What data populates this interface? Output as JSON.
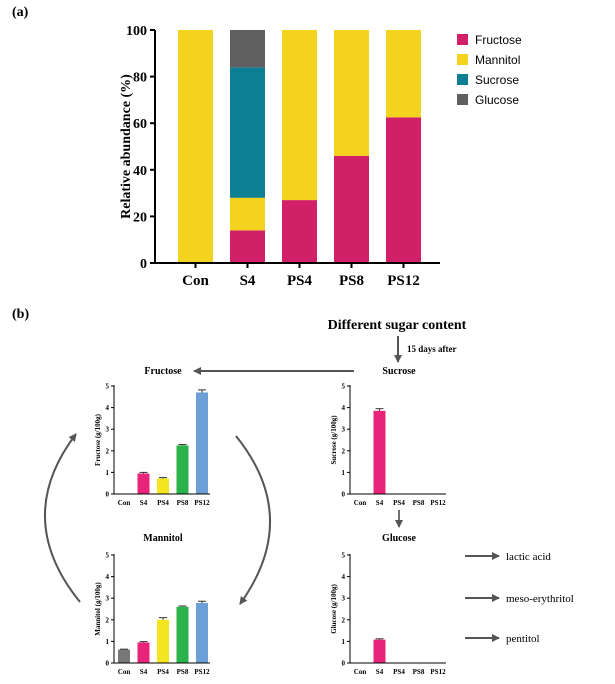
{
  "panel_labels": {
    "a": "(a)",
    "b": "(b)"
  },
  "colors": {
    "fructose": "#d11f68",
    "mannitol": "#f4d31f",
    "sucrose": "#0d7f92",
    "glucose": "#5f5f5f",
    "con_gray": "#777777",
    "s4": "#e8237a",
    "ps4": "#f4e61e",
    "ps8": "#2ab34a",
    "ps12": "#6b9fd6",
    "arrow": "#555555"
  },
  "chart_data": [
    {
      "id": "stacked",
      "type": "bar",
      "stacked": true,
      "categories": [
        "Con",
        "S4",
        "PS4",
        "PS8",
        "PS12"
      ],
      "ylabel": "Relative abundance (%)",
      "ylim": [
        0,
        100
      ],
      "yticks": [
        0,
        20,
        40,
        60,
        80,
        100
      ],
      "legend_position": "right",
      "series": [
        {
          "name": "Fructose",
          "values": [
            0,
            14,
            27,
            46,
            62.5
          ]
        },
        {
          "name": "Mannitol",
          "values": [
            100,
            14,
            73,
            54,
            37.5
          ]
        },
        {
          "name": "Sucrose",
          "values": [
            0,
            56,
            0,
            0,
            0
          ]
        },
        {
          "name": "Glucose",
          "values": [
            0,
            16,
            0,
            0,
            0
          ]
        }
      ]
    },
    {
      "id": "fructose",
      "type": "bar",
      "title": "Fructose",
      "ylabel": "Fructose (g/100g)",
      "categories": [
        "Con",
        "S4",
        "PS4",
        "PS8",
        "PS12"
      ],
      "values": [
        0,
        0.95,
        0.72,
        2.25,
        4.7
      ],
      "errors": [
        0,
        0.05,
        0.04,
        0.04,
        0.12
      ],
      "ylim": [
        0,
        5
      ],
      "yticks": [
        0,
        1,
        2,
        3,
        4,
        5
      ]
    },
    {
      "id": "sucrose",
      "type": "bar",
      "title": "Sucrose",
      "ylabel": "Sucrose (g/100g)",
      "categories": [
        "Con",
        "S4",
        "PS4",
        "PS8",
        "PS12"
      ],
      "values": [
        0,
        3.85,
        0,
        0,
        0
      ],
      "errors": [
        0,
        0.1,
        0,
        0,
        0
      ],
      "ylim": [
        0,
        5
      ],
      "yticks": [
        0,
        1,
        2,
        3,
        4,
        5
      ]
    },
    {
      "id": "mannitol",
      "type": "bar",
      "title": "Mannitol",
      "ylabel": "Mannitol (g/100g)",
      "categories": [
        "Con",
        "S4",
        "PS4",
        "PS8",
        "PS12"
      ],
      "values": [
        0.62,
        0.95,
        2.0,
        2.6,
        2.78
      ],
      "errors": [
        0.02,
        0.04,
        0.1,
        0.04,
        0.08
      ],
      "ylim": [
        0,
        5
      ],
      "yticks": [
        0,
        1,
        2,
        3,
        4,
        5
      ]
    },
    {
      "id": "glucose",
      "type": "bar",
      "title": "Glucose",
      "ylabel": "Glucose (g/100g)",
      "categories": [
        "Con",
        "S4",
        "PS4",
        "PS8",
        "PS12"
      ],
      "values": [
        0,
        1.08,
        0,
        0,
        0
      ],
      "errors": [
        0,
        0.04,
        0,
        0,
        0
      ],
      "ylim": [
        0,
        5
      ],
      "yticks": [
        0,
        1,
        2,
        3,
        4,
        5
      ]
    }
  ],
  "diagram": {
    "heading": "Different sugar content",
    "step_label": "15 days after",
    "products": [
      "lactic acid",
      "meso-erythritol",
      "pentitol"
    ]
  }
}
